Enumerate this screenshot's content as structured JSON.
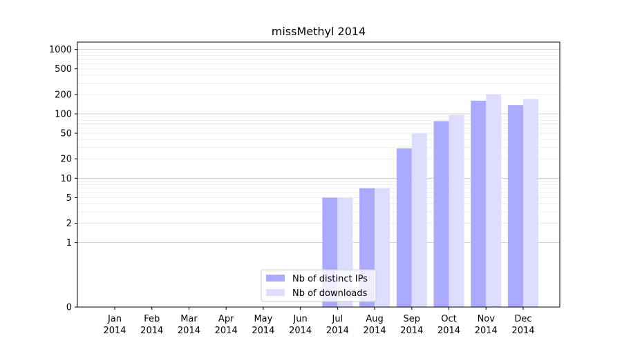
{
  "chart_data": {
    "type": "bar",
    "title": "missMethyl 2014",
    "xlabel": "",
    "ylabel": "",
    "yscale": "symlog",
    "ylim": [
      0,
      1300
    ],
    "y_ticks": [
      0,
      1,
      2,
      5,
      10,
      20,
      50,
      100,
      200,
      500,
      1000
    ],
    "categories": [
      [
        "Jan",
        "2014"
      ],
      [
        "Feb",
        "2014"
      ],
      [
        "Mar",
        "2014"
      ],
      [
        "Apr",
        "2014"
      ],
      [
        "May",
        "2014"
      ],
      [
        "Jun",
        "2014"
      ],
      [
        "Jul",
        "2014"
      ],
      [
        "Aug",
        "2014"
      ],
      [
        "Sep",
        "2014"
      ],
      [
        "Oct",
        "2014"
      ],
      [
        "Nov",
        "2014"
      ],
      [
        "Dec",
        "2014"
      ]
    ],
    "series": [
      {
        "name": "Nb of distinct IPs",
        "color": "#aaaaff",
        "values": [
          0,
          0,
          0,
          0,
          0,
          0,
          5,
          7,
          29,
          77,
          160,
          137
        ]
      },
      {
        "name": "Nb of downloads",
        "color": "#ddddff",
        "values": [
          0,
          0,
          0,
          0,
          0,
          0,
          5,
          7,
          50,
          96,
          200,
          170
        ]
      }
    ],
    "grid": true,
    "legend_position": "lower-center"
  }
}
